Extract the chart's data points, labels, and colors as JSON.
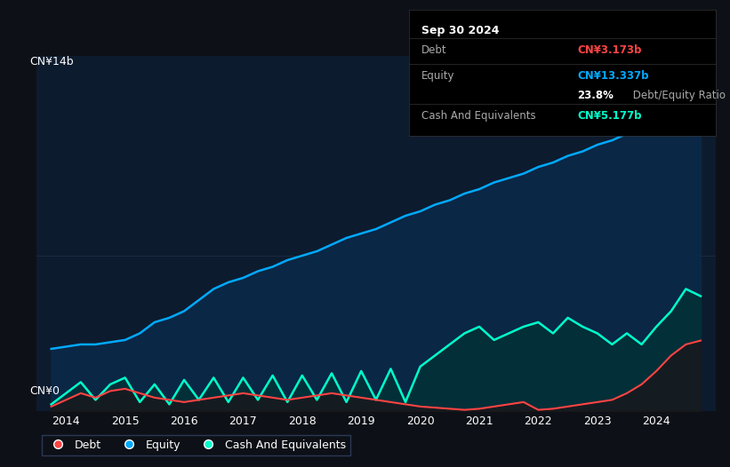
{
  "background_color": "#0d1117",
  "plot_bg_color": "#0d1b2e",
  "title": "Sep 30 2024",
  "ylabel_top": "CN¥14b",
  "ylabel_bottom": "CN¥0",
  "xlim_start": 2013.5,
  "xlim_end": 2025.0,
  "ylim": [
    0,
    16
  ],
  "xtick_labels": [
    "2014",
    "2015",
    "2016",
    "2017",
    "2018",
    "2019",
    "2020",
    "2021",
    "2022",
    "2023",
    "2024"
  ],
  "xtick_positions": [
    2014,
    2015,
    2016,
    2017,
    2018,
    2019,
    2020,
    2021,
    2022,
    2023,
    2024
  ],
  "equity_color": "#00aaff",
  "debt_color": "#ff4444",
  "cash_color": "#00ffcc",
  "equity_fill": "#0a2a4a",
  "cash_fill": "#003333",
  "legend_labels": [
    "Debt",
    "Equity",
    "Cash And Equivalents"
  ],
  "tooltip_bg": "#000000",
  "tooltip_title": "Sep 30 2024",
  "tooltip_debt_label": "Debt",
  "tooltip_debt_value": "CN¥3.173b",
  "tooltip_equity_label": "Equity",
  "tooltip_equity_value": "CN¥13.337b",
  "tooltip_ratio": "23.8% Debt/Equity Ratio",
  "tooltip_cash_label": "Cash And Equivalents",
  "tooltip_cash_value": "CN¥5.177b",
  "equity_x": [
    2013.75,
    2014.0,
    2014.25,
    2014.5,
    2014.75,
    2015.0,
    2015.25,
    2015.5,
    2015.75,
    2016.0,
    2016.25,
    2016.5,
    2016.75,
    2017.0,
    2017.25,
    2017.5,
    2017.75,
    2018.0,
    2018.25,
    2018.5,
    2018.75,
    2019.0,
    2019.25,
    2019.5,
    2019.75,
    2020.0,
    2020.25,
    2020.5,
    2020.75,
    2021.0,
    2021.25,
    2021.5,
    2021.75,
    2022.0,
    2022.25,
    2022.5,
    2022.75,
    2023.0,
    2023.25,
    2023.5,
    2023.75,
    2024.0,
    2024.25,
    2024.5,
    2024.75
  ],
  "equity_y": [
    2.8,
    2.9,
    3.0,
    3.0,
    3.1,
    3.2,
    3.5,
    4.0,
    4.2,
    4.5,
    5.0,
    5.5,
    5.8,
    6.0,
    6.3,
    6.5,
    6.8,
    7.0,
    7.2,
    7.5,
    7.8,
    8.0,
    8.2,
    8.5,
    8.8,
    9.0,
    9.3,
    9.5,
    9.8,
    10.0,
    10.3,
    10.5,
    10.7,
    11.0,
    11.2,
    11.5,
    11.7,
    12.0,
    12.2,
    12.5,
    12.7,
    13.0,
    13.2,
    14.5,
    13.337
  ],
  "debt_x": [
    2013.75,
    2014.0,
    2014.25,
    2014.5,
    2014.75,
    2015.0,
    2015.25,
    2015.5,
    2015.75,
    2016.0,
    2016.25,
    2016.5,
    2016.75,
    2017.0,
    2017.25,
    2017.5,
    2017.75,
    2018.0,
    2018.25,
    2018.5,
    2018.75,
    2019.0,
    2019.25,
    2019.5,
    2019.75,
    2020.0,
    2020.25,
    2020.5,
    2020.75,
    2021.0,
    2021.25,
    2021.5,
    2021.75,
    2022.0,
    2022.25,
    2022.5,
    2022.75,
    2023.0,
    2023.25,
    2023.5,
    2023.75,
    2024.0,
    2024.25,
    2024.5,
    2024.75
  ],
  "debt_y": [
    0.2,
    0.5,
    0.8,
    0.6,
    0.9,
    1.0,
    0.8,
    0.6,
    0.5,
    0.4,
    0.5,
    0.6,
    0.7,
    0.8,
    0.7,
    0.6,
    0.5,
    0.6,
    0.7,
    0.8,
    0.7,
    0.6,
    0.5,
    0.4,
    0.3,
    0.2,
    0.15,
    0.1,
    0.05,
    0.1,
    0.2,
    0.3,
    0.4,
    0.05,
    0.1,
    0.2,
    0.3,
    0.4,
    0.5,
    0.8,
    1.2,
    1.8,
    2.5,
    3.0,
    3.173
  ],
  "cash_x": [
    2013.75,
    2014.0,
    2014.25,
    2014.5,
    2014.75,
    2015.0,
    2015.25,
    2015.5,
    2015.75,
    2016.0,
    2016.25,
    2016.5,
    2016.75,
    2017.0,
    2017.25,
    2017.5,
    2017.75,
    2018.0,
    2018.25,
    2018.5,
    2018.75,
    2019.0,
    2019.25,
    2019.5,
    2019.75,
    2020.0,
    2020.25,
    2020.5,
    2020.75,
    2021.0,
    2021.25,
    2021.5,
    2021.75,
    2022.0,
    2022.25,
    2022.5,
    2022.75,
    2023.0,
    2023.25,
    2023.5,
    2023.75,
    2024.0,
    2024.25,
    2024.5,
    2024.75
  ],
  "cash_y": [
    0.3,
    0.8,
    1.3,
    0.5,
    1.2,
    1.5,
    0.4,
    1.2,
    0.3,
    1.4,
    0.5,
    1.5,
    0.4,
    1.5,
    0.5,
    1.6,
    0.4,
    1.6,
    0.5,
    1.7,
    0.4,
    1.8,
    0.5,
    1.9,
    0.4,
    2.0,
    2.5,
    3.0,
    3.5,
    3.8,
    3.2,
    3.5,
    3.8,
    4.0,
    3.5,
    4.2,
    3.8,
    3.5,
    3.0,
    3.5,
    3.0,
    3.8,
    4.5,
    5.5,
    5.177
  ]
}
